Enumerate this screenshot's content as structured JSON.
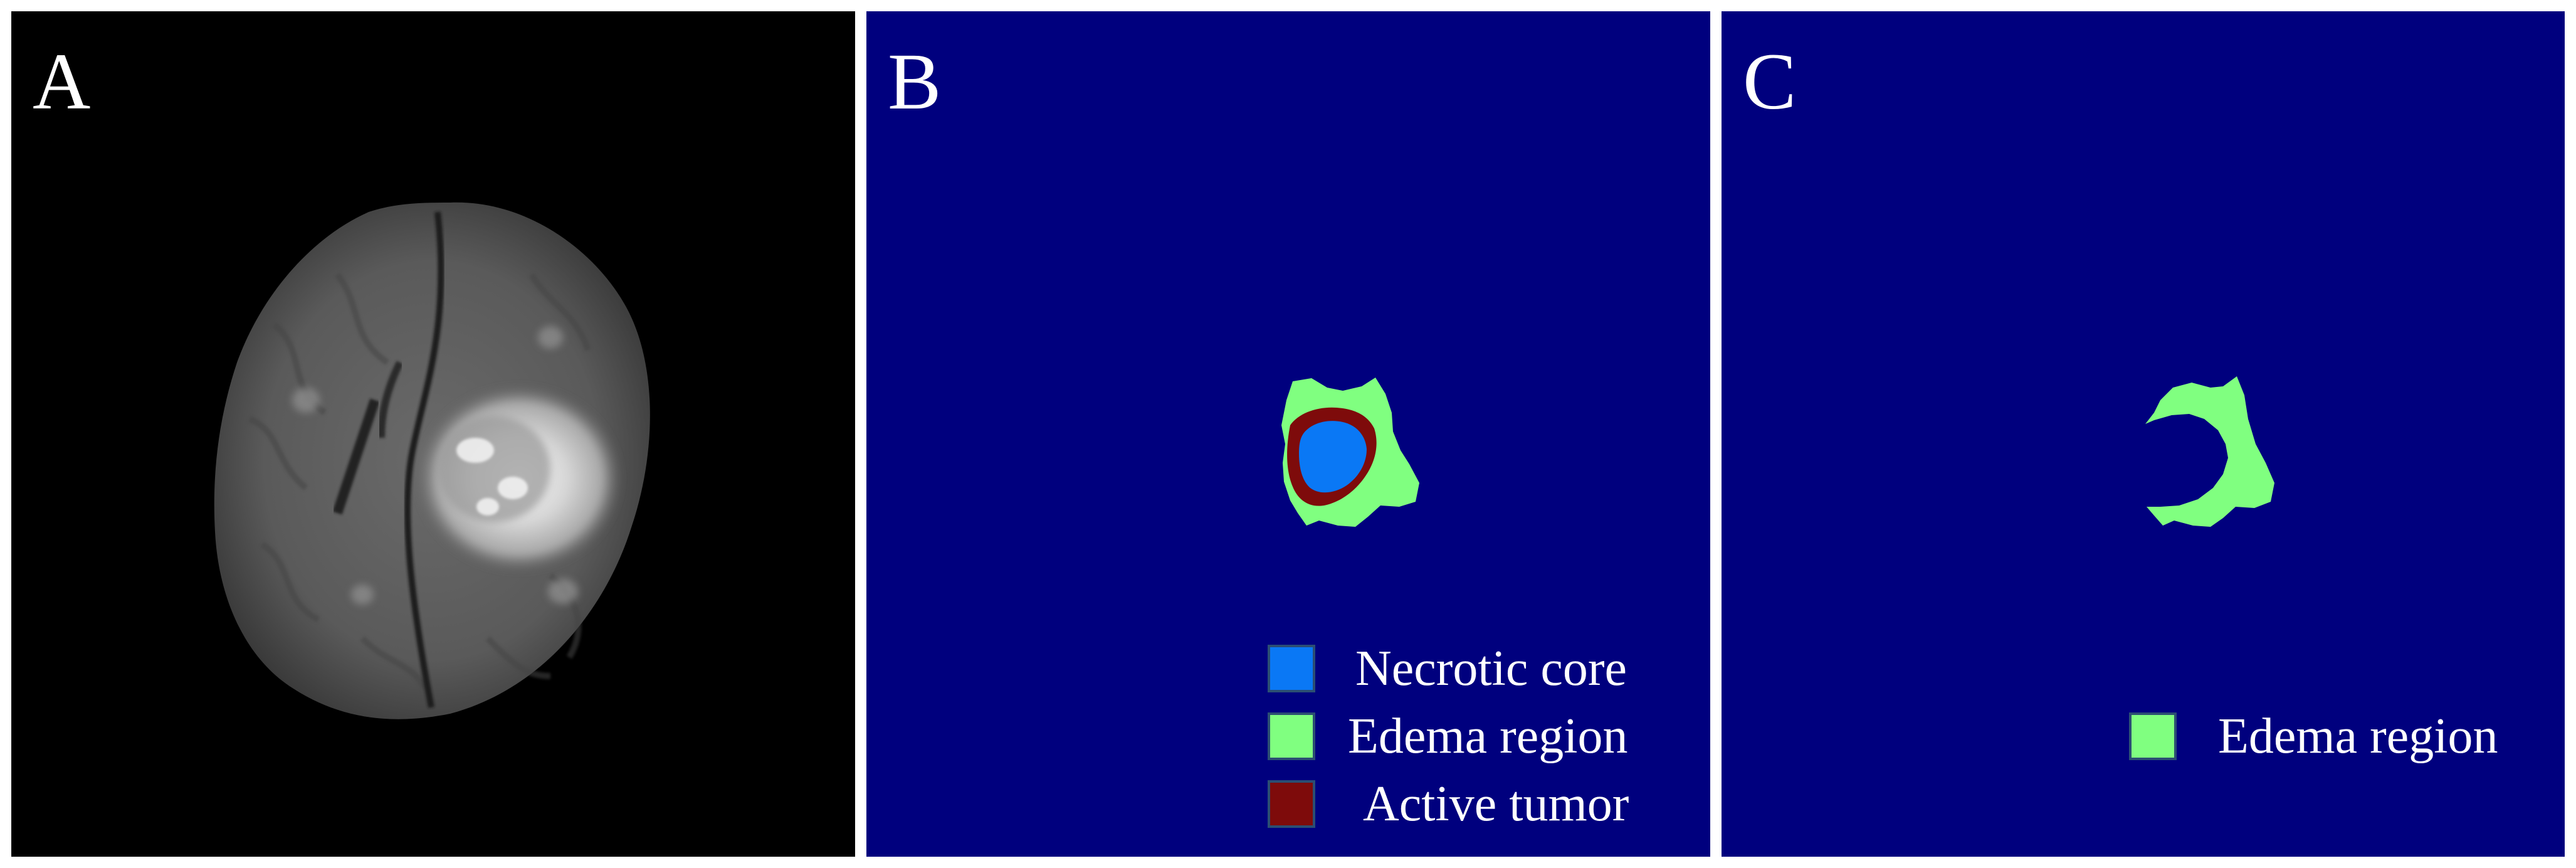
{
  "panels": [
    {
      "letter": "A"
    },
    {
      "letter": "B"
    },
    {
      "letter": "C"
    }
  ],
  "legend_b": [
    {
      "label": "Necrotic core",
      "color": "#0a78f5"
    },
    {
      "label": "Edema region",
      "color": "#80ff80"
    },
    {
      "label": "Active tumor",
      "color": "#7e0b0b"
    }
  ],
  "legend_c": [
    {
      "label": "Edema region",
      "color": "#80ff80"
    }
  ],
  "colors": {
    "mri_background": "#000000",
    "mask_background": "#00007e",
    "edema": "#80ff80",
    "necrotic": "#0a78f5",
    "active": "#7e0b0b"
  }
}
